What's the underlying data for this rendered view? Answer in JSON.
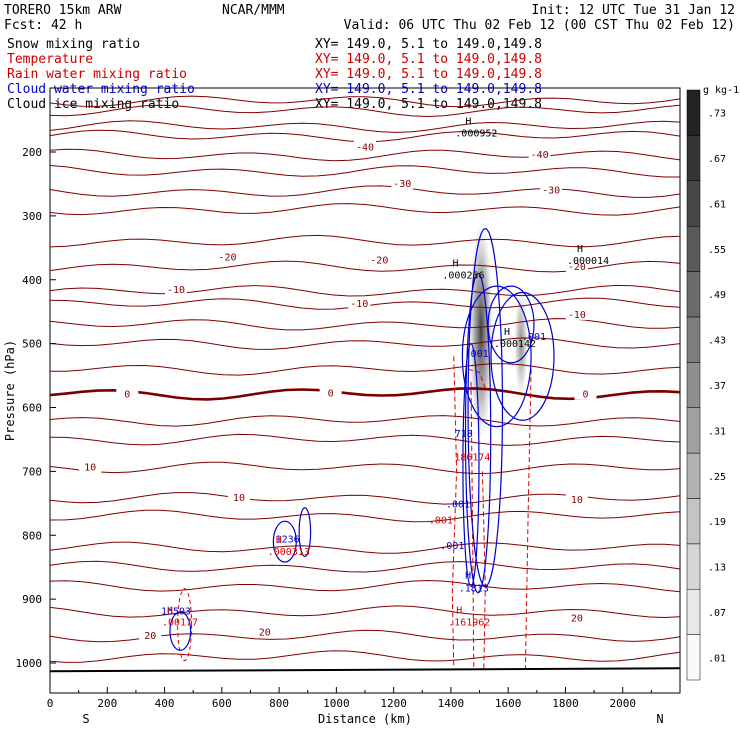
{
  "header": {
    "model": "TORERO  15km ARW",
    "center": "NCAR/MMM",
    "init": "Init: 12 UTC Tue 31 Jan 12",
    "fcst": "Fcst:   42 h",
    "valid": "Valid: 06 UTC Thu 02 Feb 12 (00 CST Thu 02 Feb 12)"
  },
  "fields": [
    {
      "name": "Snow mixing ratio",
      "xy": "",
      "color": "#000000"
    },
    {
      "name": "Temperature",
      "xy": "XY= 149.0,  5.1 to 149.0,149.8",
      "color": "#cc0000"
    },
    {
      "name": "Rain water mixing ratio",
      "xy": "XY= 149.0,  5.1 to 149.0,149.8",
      "color": "#cc0000"
    },
    {
      "name": "Cloud water mixing ratio",
      "xy": "XY= 149.0,  5.1 to 149.0,149.8",
      "color": "#0000cc"
    },
    {
      "name": "Cloud ice mixing ratio",
      "xy": "XY= 149.0,  5.1 to 149.0,149.8",
      "color": "#000000"
    }
  ],
  "snow_xy": "XY= 149.0,  5.1 to 149.0,149.8",
  "colors": {
    "temperature": "#800000",
    "freezing": "#7a0000",
    "cloud_water": "#0000cc",
    "rain": "#dd0000",
    "ground": "#000000"
  },
  "chart_data": {
    "type": "heatmap",
    "title": "",
    "xlabel": "Distance (km)",
    "ylabel": "Pressure (hPa)",
    "xlim": [
      0,
      2200
    ],
    "ylim": [
      1050,
      100
    ],
    "x_ticks": [
      0,
      200,
      400,
      600,
      800,
      1000,
      1200,
      1400,
      1600,
      1800,
      2000
    ],
    "y_ticks": [
      200,
      300,
      400,
      500,
      600,
      700,
      800,
      900,
      1000
    ],
    "x_end_labels": {
      "left": "S",
      "right": "N"
    },
    "colorbar": {
      "unit": "g kg-1",
      "labels": [
        ".01",
        ".07",
        ".13",
        ".19",
        ".25",
        ".31",
        ".37",
        ".43",
        ".49",
        ".55",
        ".61",
        ".67",
        ".73"
      ]
    },
    "temperature_isotherms": [
      {
        "label": "-40",
        "points": [
          [
            1100,
            193
          ],
          [
            1710,
            205
          ]
        ]
      },
      {
        "label": "-30",
        "points": [
          [
            1230,
            250
          ],
          [
            1750,
            260
          ]
        ]
      },
      {
        "label": "-20",
        "points": [
          [
            620,
            365
          ],
          [
            1150,
            370
          ],
          [
            1840,
            380
          ]
        ]
      },
      {
        "label": "-10",
        "points": [
          [
            440,
            416
          ],
          [
            1080,
            438
          ],
          [
            1840,
            455
          ]
        ]
      },
      {
        "label": "0",
        "points": [
          [
            270,
            580
          ],
          [
            980,
            578
          ],
          [
            1870,
            580
          ]
        ]
      },
      {
        "label": "10",
        "points": [
          [
            140,
            694
          ],
          [
            660,
            742
          ],
          [
            1840,
            745
          ]
        ]
      },
      {
        "label": "20",
        "points": [
          [
            350,
            958
          ],
          [
            750,
            952
          ],
          [
            1840,
            930
          ]
        ]
      }
    ],
    "cloud_water_labels": [
      ".001",
      ".001",
      "718",
      ".001",
      ".001",
      "1236",
      "16593"
    ],
    "cloud_water_maxima": [
      {
        "label": "H",
        "value": ".1813"
      }
    ],
    "rain_labels": [
      ".001",
      "186174"
    ],
    "rain_maxima": [
      {
        "label": "H",
        "value": ".000313"
      },
      {
        "label": "H",
        "value": ".00177"
      },
      {
        "label": "H",
        "value": ".161962"
      }
    ],
    "ice_maxima": [
      {
        "label": "H",
        "value": ".000952"
      },
      {
        "label": "H",
        "value": ".000256"
      },
      {
        "label": "H",
        "value": ".000142"
      },
      {
        "label": "H",
        "value": ".000014"
      }
    ]
  }
}
